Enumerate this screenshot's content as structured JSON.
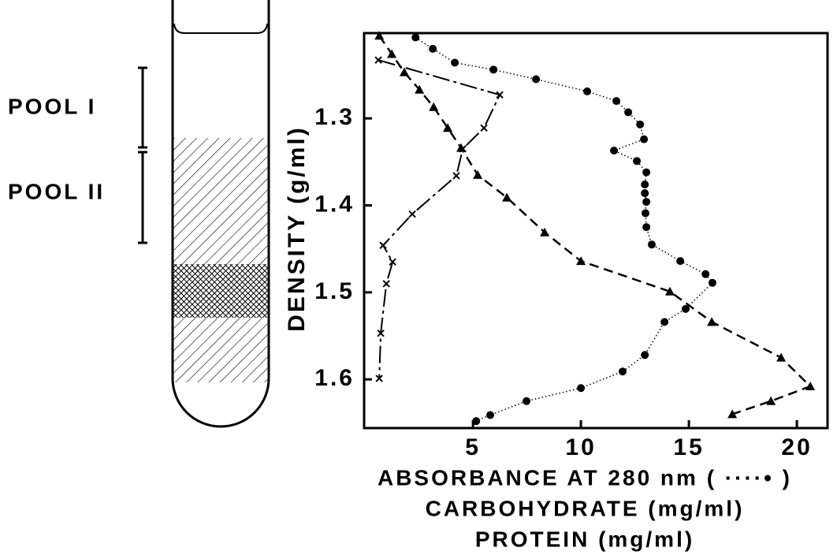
{
  "diagram": {
    "labels": [
      "POOL I",
      "POOL II"
    ]
  },
  "chart_data": {
    "type": "line",
    "y_label": "DENSITY (g/ml)",
    "x_label": [
      "ABSORBANCE AT 280 nm ( ····• )",
      "CARBOHYDRATE (mg/ml)",
      "PROTEIN (mg/ml)"
    ],
    "xlim": [
      -0.04,
      21.42
    ],
    "xticks": [
      5,
      10,
      15,
      20
    ],
    "ylim": [
      1.202,
      1.656
    ],
    "yticks": [
      1.3,
      1.4,
      1.5,
      1.6
    ],
    "y_inverted": true,
    "series": [
      {
        "marker": "circle",
        "line_style": "dotted",
        "color": "#000000",
        "x": [
          2.34,
          3.14,
          4.16,
          5.95,
          7.92,
          10.29,
          11.64,
          12.19,
          12.74,
          12.92,
          11.53,
          12.59,
          13.03,
          12.96,
          12.96,
          13.03,
          12.99,
          13.03,
          13.28,
          14.6,
          15.77,
          16.09,
          14.85,
          13.87,
          12.96,
          11.93,
          10.0,
          7.48,
          5.8,
          5.15
        ],
        "y": [
          1.207,
          1.22,
          1.236,
          1.244,
          1.255,
          1.269,
          1.28,
          1.293,
          1.307,
          1.324,
          1.337,
          1.349,
          1.362,
          1.376,
          1.386,
          1.396,
          1.409,
          1.425,
          1.445,
          1.464,
          1.479,
          1.489,
          1.519,
          1.534,
          1.572,
          1.591,
          1.61,
          1.625,
          1.641,
          1.648
        ]
      },
      {
        "marker": "triangle",
        "line_style": "dashed",
        "color": "#000000",
        "x": [
          0.66,
          1.24,
          1.82,
          2.52,
          3.18,
          3.83,
          4.45,
          5.22,
          6.57,
          8.32,
          10.0,
          14.12,
          16.06,
          19.27,
          20.62,
          18.8,
          17.01
        ],
        "y": [
          1.205,
          1.226,
          1.247,
          1.267,
          1.287,
          1.311,
          1.334,
          1.365,
          1.391,
          1.431,
          1.464,
          1.499,
          1.534,
          1.575,
          1.608,
          1.625,
          1.64
        ]
      },
      {
        "marker": "x",
        "line_style": "dashdot",
        "color": "#000000",
        "x": [
          0.62,
          6.24,
          5.51,
          4.53,
          4.23,
          2.19,
          0.84,
          1.28,
          0.99,
          0.73,
          0.66
        ],
        "y": [
          1.233,
          1.273,
          1.311,
          1.335,
          1.366,
          1.41,
          1.446,
          1.465,
          1.49,
          1.547,
          1.599
        ]
      }
    ]
  }
}
